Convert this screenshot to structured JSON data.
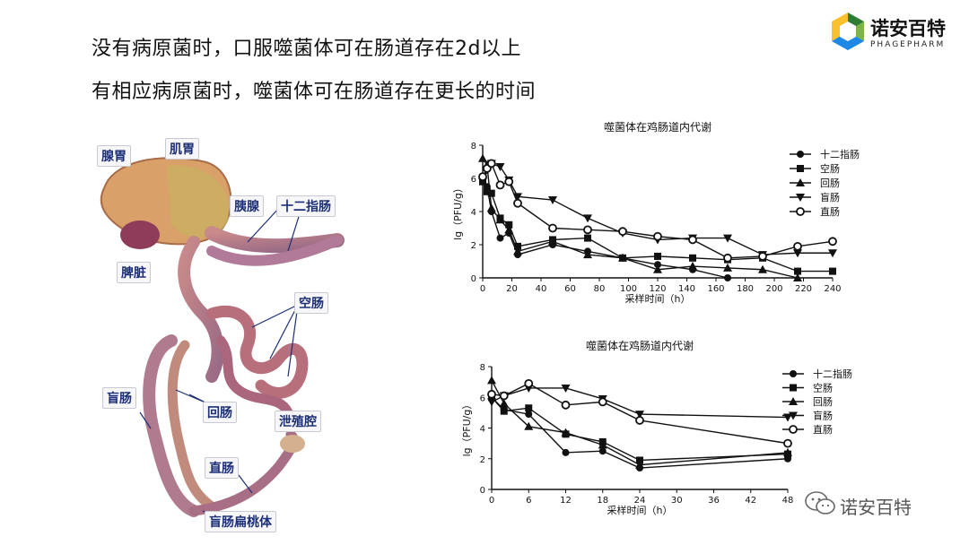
{
  "headline": {
    "line1": "没有病原菌时，口服噬菌体可在肠道存在2d以上",
    "line2": "有相应病原菌时，噬菌体可在肠道存在更长的时间"
  },
  "logo": {
    "name": "诺安百特",
    "english": "PHAGEPHARM",
    "colors": [
      "#2e7d32",
      "#7cb342",
      "#1e88e5",
      "#fbc02d"
    ]
  },
  "anatomy": {
    "labels": [
      "腺胃",
      "肌胃",
      "胰腺",
      "十二指肠",
      "脾脏",
      "空肠",
      "盲肠",
      "回肠",
      "泄殖腔",
      "直肠",
      "盲肠扁桃体"
    ]
  },
  "watermark": {
    "text": "诺安百特"
  },
  "chart_data": [
    {
      "type": "line",
      "title": "噬菌体在鸡肠道内代谢",
      "xlabel": "采样时间（h）",
      "ylabel": "lg（PFU/g）",
      "xlim": [
        0,
        240
      ],
      "ylim": [
        0,
        8
      ],
      "xticks": [
        0,
        20,
        40,
        60,
        80,
        100,
        120,
        140,
        160,
        180,
        200,
        220,
        240
      ],
      "yticks": [
        0,
        2,
        4,
        6,
        8
      ],
      "legend_position": "top-right",
      "series": [
        {
          "name": "十二指肠",
          "marker": "circle",
          "x": [
            0,
            3,
            6,
            12,
            18,
            24,
            48,
            72,
            96,
            120,
            144,
            168
          ],
          "y": [
            6.0,
            5.5,
            4.0,
            2.4,
            2.7,
            1.4,
            2.0,
            1.6,
            1.2,
            0.8,
            0.5,
            0.0
          ]
        },
        {
          "name": "空肠",
          "marker": "square",
          "x": [
            0,
            3,
            6,
            12,
            18,
            24,
            48,
            72,
            96,
            120,
            144,
            168,
            192,
            216,
            240
          ],
          "y": [
            5.8,
            5.2,
            5.1,
            3.6,
            3.2,
            1.9,
            2.3,
            2.4,
            1.2,
            1.3,
            1.2,
            1.1,
            1.2,
            0.4,
            0.4
          ]
        },
        {
          "name": "回肠",
          "marker": "triangle-up",
          "x": [
            0,
            3,
            6,
            12,
            18,
            24,
            48,
            72,
            96,
            120,
            144,
            168,
            192,
            216
          ],
          "y": [
            7.2,
            6.8,
            4.2,
            3.5,
            2.9,
            1.6,
            2.2,
            1.4,
            1.2,
            0.5,
            0.7,
            0.6,
            0.5,
            0.0
          ]
        },
        {
          "name": "盲肠",
          "marker": "triangle-down",
          "x": [
            0,
            3,
            6,
            12,
            18,
            24,
            48,
            72,
            96,
            120,
            144,
            168,
            192,
            216,
            240
          ],
          "y": [
            5.8,
            6.5,
            6.9,
            6.7,
            5.9,
            4.9,
            4.7,
            3.6,
            2.7,
            2.3,
            2.4,
            2.4,
            1.4,
            1.5,
            1.5
          ]
        },
        {
          "name": "直肠",
          "marker": "circle-open",
          "x": [
            0,
            3,
            6,
            12,
            18,
            24,
            48,
            72,
            96,
            120,
            144,
            168,
            192,
            216,
            240
          ],
          "y": [
            6.1,
            6.6,
            6.9,
            5.6,
            5.8,
            4.5,
            3.0,
            2.9,
            2.8,
            2.5,
            2.3,
            1.2,
            1.3,
            1.9,
            2.2
          ]
        }
      ]
    },
    {
      "type": "line",
      "title": "噬菌体在鸡肠道内代谢",
      "xlabel": "采样时间（h）",
      "ylabel": "lg（PFU/g）",
      "xlim": [
        0,
        48
      ],
      "ylim": [
        0,
        8
      ],
      "xticks": [
        0,
        6,
        12,
        18,
        24,
        30,
        36,
        42,
        48
      ],
      "yticks": [
        0,
        2,
        4,
        6,
        8
      ],
      "legend_position": "top-right",
      "series": [
        {
          "name": "十二指肠",
          "marker": "circle",
          "x": [
            0,
            2,
            6,
            12,
            18,
            24,
            48
          ],
          "y": [
            6.0,
            5.2,
            4.9,
            2.4,
            2.5,
            1.4,
            2.0
          ]
        },
        {
          "name": "空肠",
          "marker": "square",
          "x": [
            0,
            2,
            6,
            12,
            18,
            24,
            48
          ],
          "y": [
            6.0,
            5.1,
            5.3,
            3.6,
            3.1,
            1.9,
            2.3
          ]
        },
        {
          "name": "回肠",
          "marker": "triangle-up",
          "x": [
            0,
            2,
            6,
            12,
            18,
            24,
            48
          ],
          "y": [
            7.1,
            5.6,
            4.1,
            3.7,
            2.9,
            1.6,
            2.4
          ]
        },
        {
          "name": "盲肠",
          "marker": "triangle-down",
          "x": [
            0,
            2,
            6,
            12,
            18,
            24,
            48
          ],
          "y": [
            5.7,
            6.1,
            6.6,
            6.6,
            5.9,
            4.9,
            4.7
          ]
        },
        {
          "name": "直肠",
          "marker": "circle-open",
          "x": [
            0,
            2,
            6,
            12,
            18,
            24,
            48
          ],
          "y": [
            6.2,
            6.1,
            6.9,
            5.5,
            5.7,
            4.5,
            3.0
          ]
        }
      ]
    }
  ]
}
